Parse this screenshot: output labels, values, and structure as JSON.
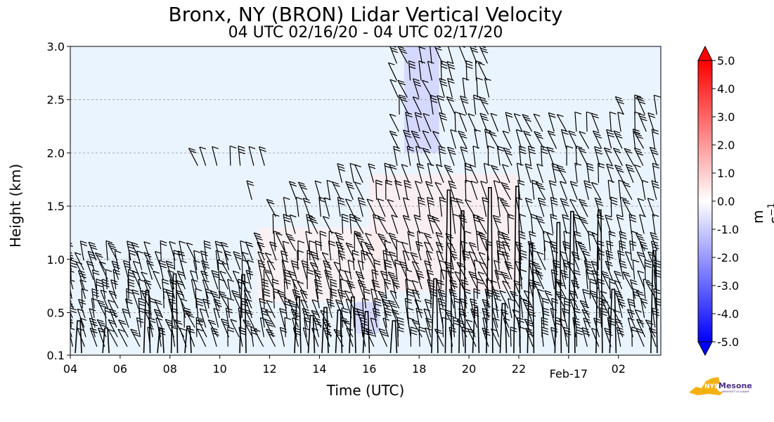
{
  "colors": {
    "positive": "#ff0000",
    "negative": "#0000ff",
    "neutral": "#ffffff",
    "background_field": "#eaf4ff",
    "logo_yellow": "#f3b113",
    "logo_purple": "#4b2e83"
  },
  "chart_data": {
    "type": "heatmap",
    "title": "Bronx, NY (BRON) Lidar Vertical Velocity",
    "subtitle": "04 UTC 02/16/20 - 04 UTC 02/17/20",
    "xlabel": "Time (UTC)",
    "ylabel": "Height (km)",
    "x_ticks": [
      "04",
      "06",
      "08",
      "10",
      "12",
      "14",
      "16",
      "18",
      "20",
      "22",
      "Feb-17",
      "02"
    ],
    "x_tick_hours": [
      4,
      6,
      8,
      10,
      12,
      14,
      16,
      18,
      20,
      22,
      24,
      26
    ],
    "xlim_hours": [
      4,
      27.7
    ],
    "y_ticks": [
      "0.1",
      "0.5",
      "1.0",
      "1.5",
      "2.0",
      "2.5",
      "3.0"
    ],
    "y_tick_values": [
      0.1,
      0.5,
      1.0,
      1.5,
      2.0,
      2.5,
      3.0
    ],
    "ylim": [
      0.1,
      3.0
    ],
    "grid": "horizontal dashed",
    "colorbar": {
      "label": "m s",
      "label_exponent": "−1",
      "range": [
        -5.0,
        5.0
      ],
      "ticks": [
        "5.0",
        "4.0",
        "3.0",
        "2.0",
        "1.0",
        "0.0",
        "-1.0",
        "-2.0",
        "-3.0",
        "-4.0",
        "-5.0"
      ],
      "extend": "both",
      "colormap": "bwr"
    },
    "features": [
      {
        "kind": "downdraft",
        "t0": 17.4,
        "t1": 18.8,
        "z0": 2.0,
        "z1": 3.0,
        "w": -1.0
      },
      {
        "kind": "downdraft",
        "t0": 15.4,
        "t1": 16.4,
        "z0": 0.3,
        "z1": 0.6,
        "w": -1.0
      },
      {
        "kind": "updraft",
        "t0": 11.5,
        "t1": 16.5,
        "z0": 0.6,
        "z1": 1.3,
        "w": 0.3
      },
      {
        "kind": "updraft",
        "t0": 16.0,
        "t1": 22.0,
        "z0": 0.7,
        "z1": 1.8,
        "w": 0.4
      }
    ]
  },
  "logo": {
    "line1": "Mesonet",
    "line2": "UNIVERSITY AT ALBANY",
    "state": "NYS"
  }
}
